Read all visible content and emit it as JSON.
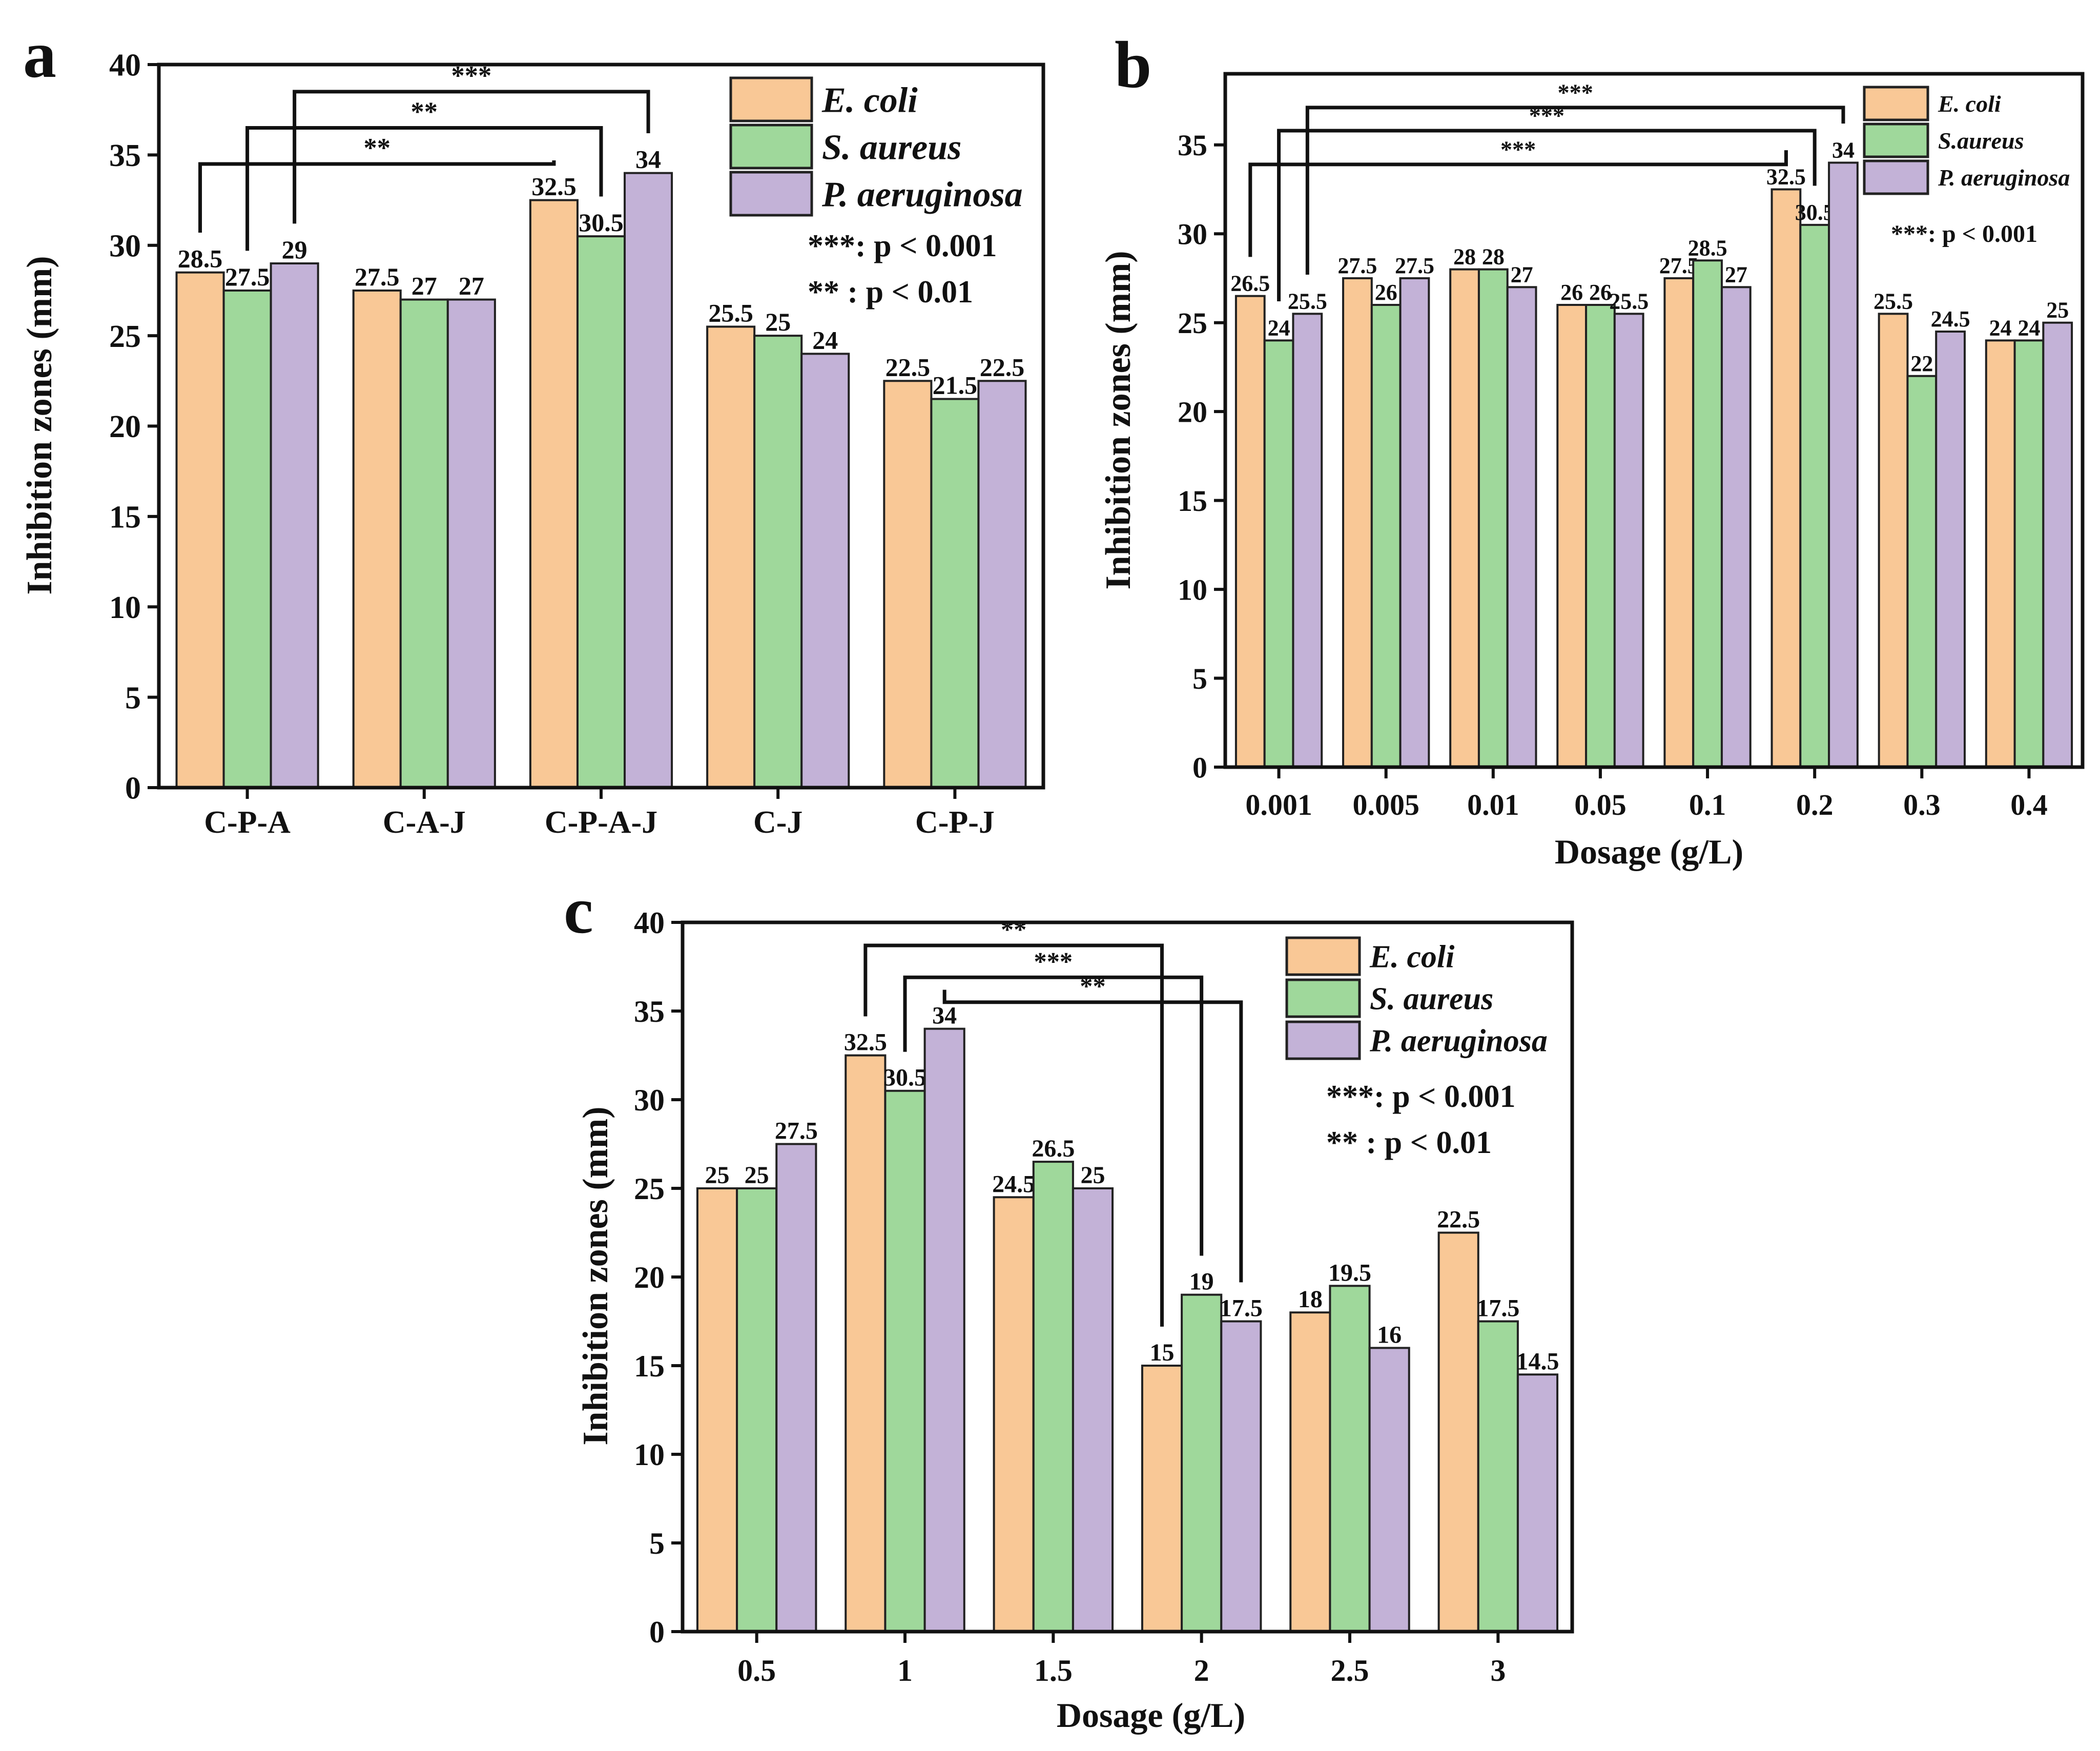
{
  "colors": {
    "E. coli": "#F9C896",
    "S. aureus": "#9FD89B",
    "P. aeruginosa": "#C3B2D7",
    "axis": "#111111"
  },
  "chart_data": [
    {
      "panel": "a",
      "type": "bar",
      "title": "",
      "xlabel": "",
      "ylabel": "Inhibition zones (mm)",
      "ylim": [
        0,
        40
      ],
      "yticks": [
        0,
        5,
        10,
        15,
        20,
        25,
        30,
        35,
        40
      ],
      "categories": [
        "C-P-A",
        "C-A-J",
        "C-P-A-J",
        "C-J",
        "C-P-J"
      ],
      "legend": [
        "E. coli",
        "S. aureus",
        "P. aeruginosa"
      ],
      "series": [
        {
          "name": "E. coli",
          "values": [
            28.5,
            27.5,
            32.5,
            25.5,
            22.5
          ]
        },
        {
          "name": "S. aureus",
          "values": [
            27.5,
            27,
            30.5,
            25,
            21.5
          ]
        },
        {
          "name": "P. aeruginosa",
          "values": [
            29,
            27,
            34,
            24,
            22.5
          ]
        }
      ],
      "value_labels": [
        [
          "28.5",
          "27.5",
          "32.5",
          "25.5",
          "22.5"
        ],
        [
          "27.5",
          "27",
          "30.5",
          "25",
          "21.5"
        ],
        [
          "29",
          "27",
          "34",
          "24",
          "22.5"
        ]
      ],
      "significance": [
        {
          "from": [
            0,
            0
          ],
          "to": [
            2,
            0
          ],
          "level": 34.5,
          "label": "**"
        },
        {
          "from": [
            0,
            1
          ],
          "to": [
            2,
            1
          ],
          "level": 36.5,
          "label": "**"
        },
        {
          "from": [
            0,
            2
          ],
          "to": [
            2,
            2
          ],
          "level": 38.5,
          "label": "***"
        }
      ],
      "p_notes": [
        "***: p < 0.001",
        "** : p < 0.01"
      ]
    },
    {
      "panel": "b",
      "type": "bar",
      "title": "",
      "xlabel": "Dosage (g/L)",
      "ylabel": "Inhibition zones (mm)",
      "ylim": [
        0,
        39
      ],
      "yticks": [
        0,
        5,
        10,
        15,
        20,
        25,
        30,
        35
      ],
      "categories": [
        "0.001",
        "0.005",
        "0.01",
        "0.05",
        "0.1",
        "0.2",
        "0.3",
        "0.4"
      ],
      "legend": [
        "E. coli",
        "S.aureus",
        "P. aeruginosa"
      ],
      "series": [
        {
          "name": "E. coli",
          "values": [
            26.5,
            27.5,
            28,
            26,
            27.5,
            32.5,
            25.5,
            24
          ]
        },
        {
          "name": "S. aureus",
          "values": [
            24,
            26,
            28,
            26,
            28.5,
            30.5,
            22,
            24
          ]
        },
        {
          "name": "P. aeruginosa",
          "values": [
            25.5,
            27.5,
            27,
            25.5,
            27,
            34,
            24.5,
            25
          ]
        }
      ],
      "value_labels": [
        [
          "26.5",
          "27.5",
          "28",
          "26",
          "27.5",
          "32.5",
          "25.5",
          "24"
        ],
        [
          "24",
          "26",
          "28",
          "26",
          "28.5",
          "30.5",
          "22",
          "24"
        ],
        [
          "25.5",
          "27.5",
          "27",
          "25.5",
          "27",
          "34",
          "24.5",
          "25"
        ]
      ],
      "significance": [
        {
          "from": [
            0,
            0
          ],
          "to": [
            5,
            0
          ],
          "level": 33.9,
          "label": "***"
        },
        {
          "from": [
            0,
            1
          ],
          "to": [
            5,
            1
          ],
          "level": 35.8,
          "label": "***"
        },
        {
          "from": [
            0,
            2
          ],
          "to": [
            5,
            2
          ],
          "level": 37.1,
          "label": "***"
        }
      ],
      "p_notes": [
        "***: p < 0.001"
      ]
    },
    {
      "panel": "c",
      "type": "bar",
      "title": "",
      "xlabel": "Dosage (g/L)",
      "ylabel": "Inhibition zones (mm)",
      "ylim": [
        0,
        40
      ],
      "yticks": [
        0,
        5,
        10,
        15,
        20,
        25,
        30,
        35,
        40
      ],
      "categories": [
        "0.5",
        "1",
        "1.5",
        "2",
        "2.5",
        "3"
      ],
      "legend": [
        "E. coli",
        "S. aureus",
        "P. aeruginosa"
      ],
      "series": [
        {
          "name": "E. coli",
          "values": [
            25,
            32.5,
            24.5,
            15,
            18,
            22.5
          ]
        },
        {
          "name": "S. aureus",
          "values": [
            25,
            30.5,
            26.5,
            19,
            19.5,
            17.5
          ]
        },
        {
          "name": "P. aeruginosa",
          "values": [
            27.5,
            34,
            25,
            17.5,
            16,
            14.5
          ]
        }
      ],
      "value_labels": [
        [
          "25",
          "32.5",
          "24.5",
          "15",
          "18",
          "22.5"
        ],
        [
          "25",
          "30.5",
          "26.5",
          "19",
          "19.5",
          "17.5"
        ],
        [
          "27.5",
          "34",
          "25",
          "17.5",
          "16",
          "14.5"
        ]
      ],
      "significance": [
        {
          "from": [
            1,
            0
          ],
          "to": [
            3,
            0
          ],
          "level": 38.7,
          "label": "**"
        },
        {
          "from": [
            1,
            1
          ],
          "to": [
            3,
            1
          ],
          "level": 36.9,
          "label": "***"
        },
        {
          "from": [
            1,
            2
          ],
          "to": [
            3,
            2
          ],
          "level": 35.5,
          "label": "**"
        }
      ],
      "p_notes": [
        "***: p < 0.001",
        "** : p < 0.01"
      ]
    }
  ]
}
